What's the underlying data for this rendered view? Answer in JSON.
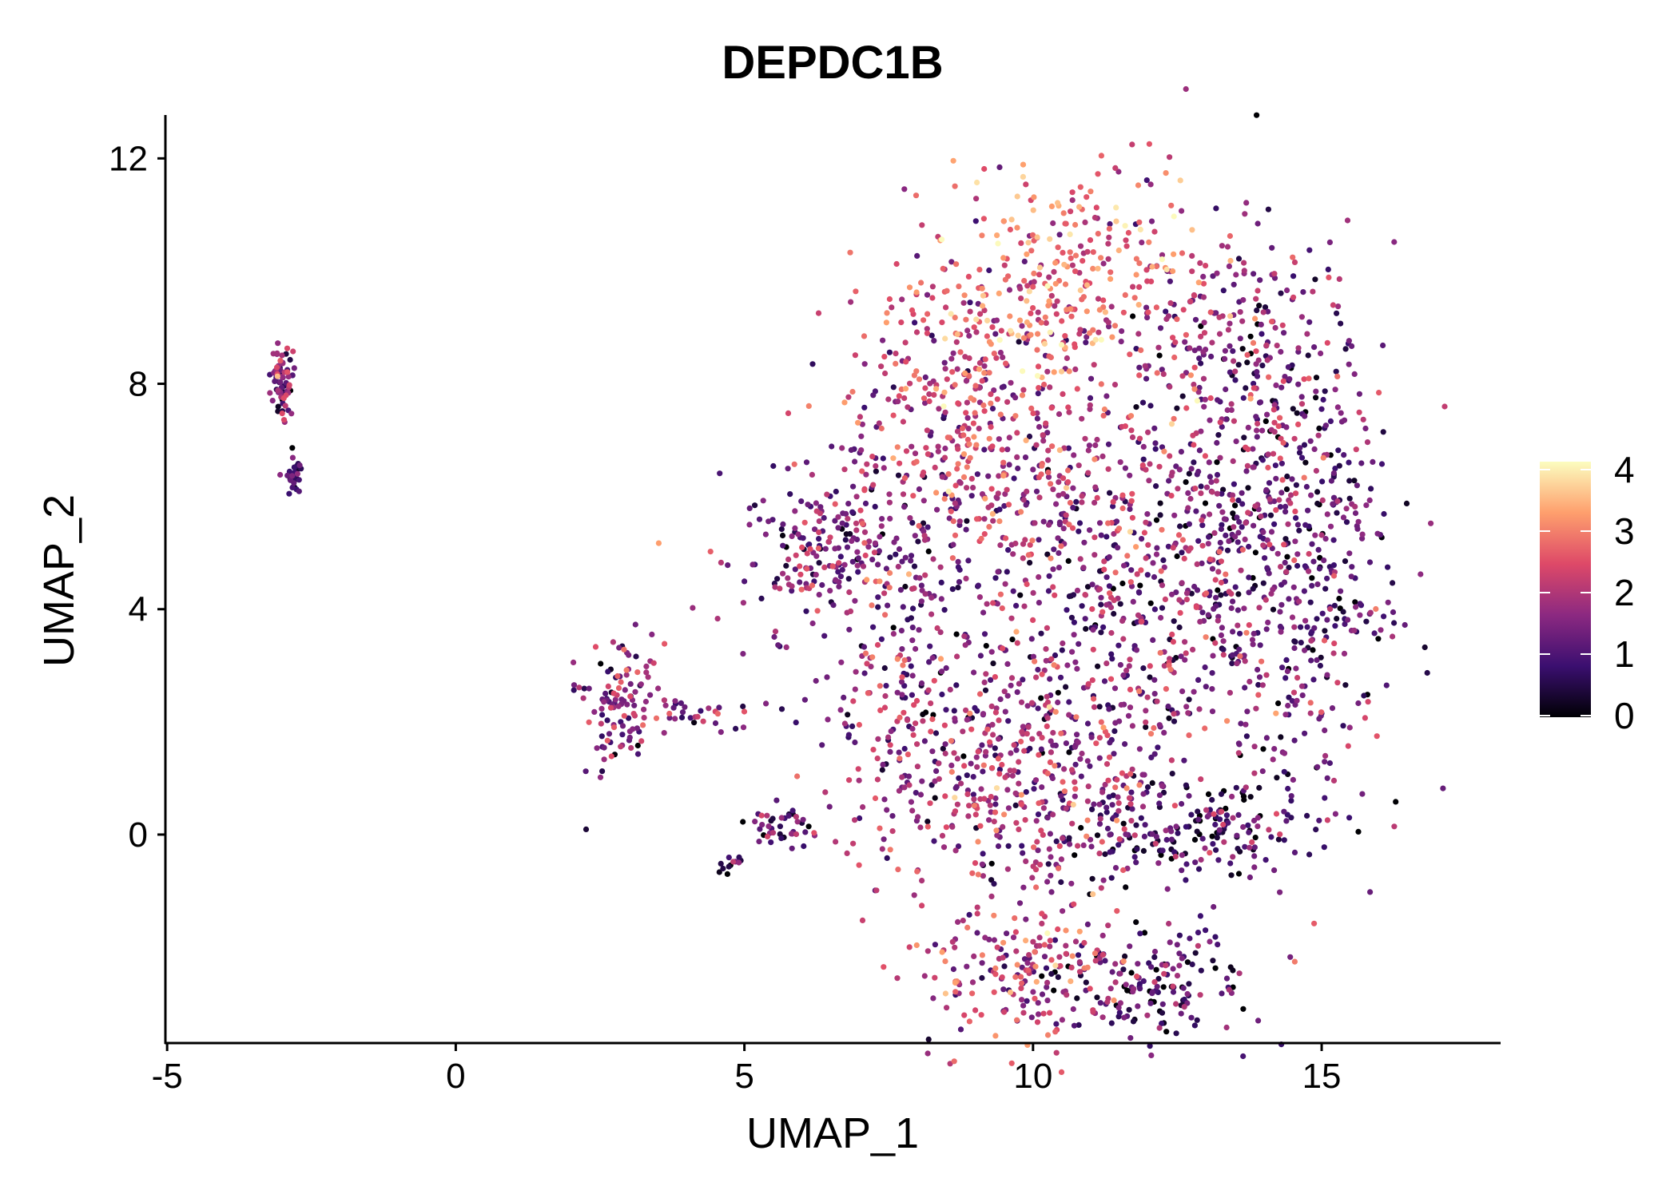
{
  "chart_data": {
    "type": "scatter",
    "title": "DEPDC1B",
    "xlabel": "UMAP_1",
    "ylabel": "UMAP_2",
    "xlim": [
      -5.03,
      18.1
    ],
    "ylim": [
      -3.7,
      12.77
    ],
    "xticks": [
      -5,
      0,
      5,
      10,
      15
    ],
    "xtick_labels": [
      "-5",
      "0",
      "5",
      "10",
      "15"
    ],
    "yticks": [
      0,
      4,
      8,
      12
    ],
    "ytick_labels": [
      "0",
      "4",
      "8",
      "12"
    ],
    "grid": false,
    "legend": {
      "type": "colorbar",
      "placement": "right",
      "range": [
        0,
        4.13
      ],
      "ticks": [
        0,
        1,
        2,
        3,
        4
      ],
      "tick_labels": [
        "0",
        "1",
        "2",
        "3",
        "4"
      ],
      "colormap": "magma",
      "stops": [
        "#000004",
        "#3b0f70",
        "#8c2981",
        "#de4968",
        "#fe9f6d",
        "#fcfdbf"
      ]
    },
    "point_color_encodes": "expression level (0-4)",
    "clusters_note": "approximate point clouds: center x,y, spread sx,sy, count n, mean expression m",
    "clusters": [
      {
        "x": -3.0,
        "y": 8.0,
        "sx": 0.12,
        "sy": 0.4,
        "n": 70,
        "m": 1.5
      },
      {
        "x": -2.8,
        "y": 6.4,
        "sx": 0.08,
        "sy": 0.2,
        "n": 25,
        "m": 0.7
      },
      {
        "x": 2.8,
        "y": 2.4,
        "sx": 0.35,
        "sy": 0.55,
        "n": 110,
        "m": 1.6
      },
      {
        "x": 4.5,
        "y": 2.1,
        "sx": 0.8,
        "sy": 0.15,
        "n": 35,
        "m": 1.7
      },
      {
        "x": 5.6,
        "y": 0.1,
        "sx": 0.35,
        "sy": 0.2,
        "n": 40,
        "m": 1.0
      },
      {
        "x": 4.8,
        "y": -0.5,
        "sx": 0.1,
        "sy": 0.08,
        "n": 12,
        "m": 0.8
      },
      {
        "x": 10.5,
        "y": 9.8,
        "sx": 1.3,
        "sy": 1.0,
        "n": 320,
        "m": 2.7
      },
      {
        "x": 8.8,
        "y": 7.8,
        "sx": 1.1,
        "sy": 1.1,
        "n": 300,
        "m": 2.2
      },
      {
        "x": 13.5,
        "y": 8.7,
        "sx": 1.0,
        "sy": 1.0,
        "n": 220,
        "m": 1.5
      },
      {
        "x": 14.8,
        "y": 4.8,
        "sx": 0.8,
        "sy": 2.2,
        "n": 420,
        "m": 1.2
      },
      {
        "x": 6.6,
        "y": 5.0,
        "sx": 1.0,
        "sy": 0.8,
        "n": 260,
        "m": 1.5
      },
      {
        "x": 8.0,
        "y": 2.2,
        "sx": 0.9,
        "sy": 1.2,
        "n": 220,
        "m": 1.5
      },
      {
        "x": 10.0,
        "y": 0.8,
        "sx": 1.2,
        "sy": 1.0,
        "n": 340,
        "m": 1.9
      },
      {
        "x": 12.6,
        "y": 0.0,
        "sx": 1.2,
        "sy": 0.4,
        "n": 200,
        "m": 1.0
      },
      {
        "x": 9.9,
        "y": -2.5,
        "sx": 1.0,
        "sy": 0.6,
        "n": 200,
        "m": 2.0
      },
      {
        "x": 12.2,
        "y": -2.6,
        "sx": 0.9,
        "sy": 0.45,
        "n": 150,
        "m": 0.9
      },
      {
        "x": 11.6,
        "y": 3.3,
        "sx": 1.4,
        "sy": 1.3,
        "n": 350,
        "m": 1.4
      },
      {
        "x": 10.6,
        "y": 6.0,
        "sx": 1.5,
        "sy": 1.0,
        "n": 300,
        "m": 1.7
      },
      {
        "x": 13.3,
        "y": 5.5,
        "sx": 0.8,
        "sy": 1.2,
        "n": 180,
        "m": 1.3
      }
    ]
  }
}
